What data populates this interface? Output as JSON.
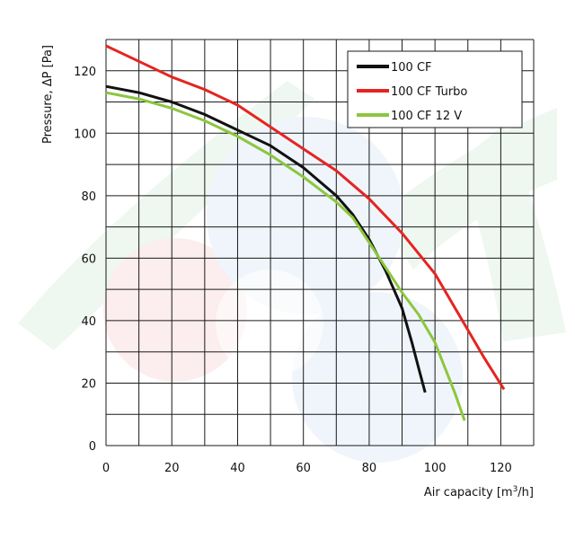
{
  "chart_data": {
    "type": "line",
    "title": "",
    "xlabel_main": "Air capacity [m",
    "xlabel_sup": "3",
    "xlabel_end": "/h]",
    "ylabel": "Pressure, ΔP [Pa]",
    "xlim": [
      0,
      130
    ],
    "ylim": [
      0,
      130
    ],
    "x_ticks": [
      0,
      20,
      40,
      60,
      80,
      100,
      120
    ],
    "y_ticks": [
      0,
      20,
      40,
      60,
      80,
      100,
      120
    ],
    "x_grid_step": 10,
    "y_grid_step": 10,
    "grid": true,
    "legend_position": "top-right",
    "series": [
      {
        "name": "100 CF",
        "color": "#111111",
        "points": [
          [
            0,
            115
          ],
          [
            10,
            113
          ],
          [
            20,
            110
          ],
          [
            30,
            106
          ],
          [
            40,
            101
          ],
          [
            50,
            96
          ],
          [
            60,
            89
          ],
          [
            70,
            80
          ],
          [
            75,
            74
          ],
          [
            80,
            66
          ],
          [
            85,
            56
          ],
          [
            90,
            44
          ],
          [
            93,
            33
          ],
          [
            95,
            25
          ],
          [
            97,
            17
          ]
        ]
      },
      {
        "name": "100 CF Turbo",
        "color": "#e52421",
        "points": [
          [
            0,
            128
          ],
          [
            10,
            123
          ],
          [
            20,
            118
          ],
          [
            30,
            114
          ],
          [
            40,
            109
          ],
          [
            50,
            102
          ],
          [
            60,
            95
          ],
          [
            70,
            88
          ],
          [
            80,
            79
          ],
          [
            90,
            68
          ],
          [
            100,
            55
          ],
          [
            110,
            37
          ],
          [
            115,
            28
          ],
          [
            121,
            18
          ]
        ]
      },
      {
        "name": "100 CF 12 V",
        "color": "#8cc63f",
        "points": [
          [
            0,
            113
          ],
          [
            10,
            111
          ],
          [
            20,
            108
          ],
          [
            30,
            104
          ],
          [
            40,
            99
          ],
          [
            50,
            93
          ],
          [
            60,
            86
          ],
          [
            70,
            78
          ],
          [
            75,
            73
          ],
          [
            80,
            65
          ],
          [
            85,
            57
          ],
          [
            90,
            49
          ],
          [
            95,
            42
          ],
          [
            100,
            33
          ],
          [
            103,
            25
          ],
          [
            106,
            17
          ],
          [
            109,
            8
          ]
        ]
      }
    ]
  }
}
